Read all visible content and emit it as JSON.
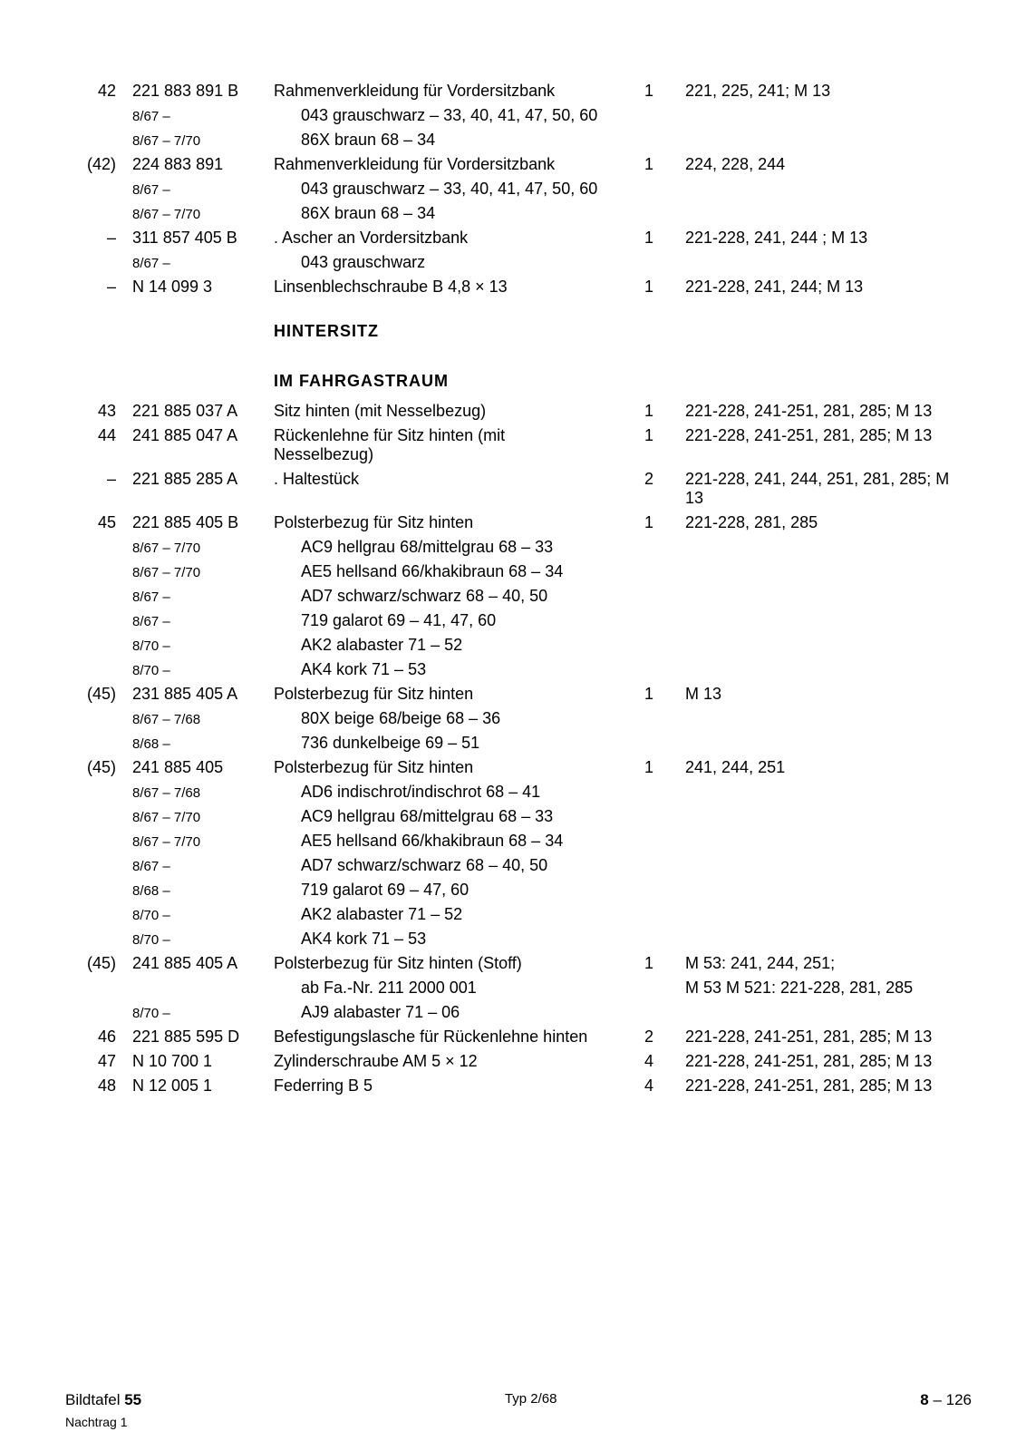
{
  "rows": [
    {
      "pos": "42",
      "partno": "221 883 891 B",
      "desc": "Rahmenverkleidung für Vordersitzbank",
      "qty": "1",
      "models": "221, 225, 241; M 13"
    },
    {
      "pos": "",
      "partno": "8/67 –",
      "desc": "043  grauschwarz – 33, 40,  41, 47, 50, 60",
      "qty": "",
      "models": "",
      "px": "daterange",
      "di": "indent1"
    },
    {
      "pos": "",
      "partno": "8/67 – 7/70",
      "desc": "86X  braun 68 – 34",
      "qty": "",
      "models": "",
      "px": "daterange",
      "di": "indent1"
    },
    {
      "pos": "(42)",
      "partno": "224 883 891",
      "desc": "Rahmenverkleidung für Vordersitzbank",
      "qty": "1",
      "models": "224, 228, 244"
    },
    {
      "pos": "",
      "partno": "8/67 –",
      "desc": "043  grauschwarz – 33, 40, 41, 47, 50, 60",
      "qty": "",
      "models": "",
      "px": "daterange",
      "di": "indent1"
    },
    {
      "pos": "",
      "partno": "8/67 – 7/70",
      "desc": "86X  braun 68 – 34",
      "qty": "",
      "models": "",
      "px": "daterange",
      "di": "indent1"
    },
    {
      "pos": "–",
      "partno": "311 857 405 B",
      "desc": ". Ascher an Vordersitzbank",
      "qty": "1",
      "models": "221-228, 241, 244 ; M 13"
    },
    {
      "pos": "",
      "partno": "8/67 –",
      "desc": "043  grauschwarz",
      "qty": "",
      "models": "",
      "px": "daterange",
      "di": "indent1"
    },
    {
      "pos": "–",
      "partno": "N 14 099 3",
      "desc": "Linsenblechschraube B 4,8 × 13",
      "qty": "1",
      "models": "221-228, 241, 244; M 13"
    },
    {
      "section": "HINTERSITZ"
    },
    {
      "section": "IM FAHRGASTRAUM"
    },
    {
      "pos": "43",
      "partno": "221 885 037 A",
      "desc": "Sitz hinten (mit Nesselbezug)",
      "qty": "1",
      "models": "221-228, 241-251, 281, 285; M 13"
    },
    {
      "pos": "44",
      "partno": "241 885 047 A",
      "desc": "Rückenlehne für Sitz hinten (mit Nesselbezug)",
      "qty": "1",
      "models": "221-228, 241-251, 281, 285; M 13"
    },
    {
      "pos": "–",
      "partno": "221 885 285 A",
      "desc": ". Haltestück",
      "qty": "2",
      "models": "221-228, 241, 244, 251, 281, 285; M 13"
    },
    {
      "pos": "45",
      "partno": "221 885 405 B",
      "desc": "Polsterbezug für Sitz hinten",
      "qty": "1",
      "models": "221-228, 281, 285"
    },
    {
      "pos": "",
      "partno": "8/67 – 7/70",
      "desc": "AC9  hellgrau 68/mittelgrau 68 – 33",
      "qty": "",
      "models": "",
      "px": "daterange",
      "di": "indent1"
    },
    {
      "pos": "",
      "partno": "8/67 – 7/70",
      "desc": "AE5  hellsand 66/khakibraun 68 – 34",
      "qty": "",
      "models": "",
      "px": "daterange",
      "di": "indent1"
    },
    {
      "pos": "",
      "partno": "8/67 –",
      "desc": "AD7  schwarz/schwarz 68 – 40, 50",
      "qty": "",
      "models": "",
      "px": "daterange",
      "di": "indent1"
    },
    {
      "pos": "",
      "partno": "8/67 –",
      "desc": "719  galarot 69 –  41, 47, 60",
      "qty": "",
      "models": "",
      "px": "daterange",
      "di": "indent1"
    },
    {
      "pos": "",
      "partno": "8/70 –",
      "desc": "AK2  alabaster 71 – 52",
      "qty": "",
      "models": "",
      "px": "daterange",
      "di": "indent1"
    },
    {
      "pos": "",
      "partno": "8/70 –",
      "desc": "AK4  kork 71 – 53",
      "qty": "",
      "models": "",
      "px": "daterange",
      "di": "indent1"
    },
    {
      "pos": "(45)",
      "partno": "231 885 405 A",
      "desc": "Polsterbezug für Sitz hinten",
      "qty": "1",
      "models": "M 13"
    },
    {
      "pos": "",
      "partno": "8/67 – 7/68",
      "desc": "80X  beige 68/beige 68 – 36",
      "qty": "",
      "models": "",
      "px": "daterange",
      "di": "indent1"
    },
    {
      "pos": "",
      "partno": "8/68 –",
      "desc": "736  dunkelbeige 69 – 51",
      "qty": "",
      "models": "",
      "px": "daterange",
      "di": "indent1"
    },
    {
      "pos": "(45)",
      "partno": "241 885 405",
      "desc": "Polsterbezug für Sitz hinten",
      "qty": "1",
      "models": "241, 244, 251"
    },
    {
      "pos": "",
      "partno": "8/67 – 7/68",
      "desc": "AD6  indischrot/indischrot 68 – 41",
      "qty": "",
      "models": "",
      "px": "daterange",
      "di": "indent1"
    },
    {
      "pos": "",
      "partno": "8/67 – 7/70",
      "desc": "AC9  hellgrau 68/mittelgrau 68 – 33",
      "qty": "",
      "models": "",
      "px": "daterange",
      "di": "indent1"
    },
    {
      "pos": "",
      "partno": "8/67 – 7/70",
      "desc": "AE5  hellsand 66/khakibraun 68 – 34",
      "qty": "",
      "models": "",
      "px": "daterange",
      "di": "indent1"
    },
    {
      "pos": "",
      "partno": "8/67 –",
      "desc": "AD7  schwarz/schwarz 68 – 40, 50",
      "qty": "",
      "models": "",
      "px": "daterange",
      "di": "indent1"
    },
    {
      "pos": "",
      "partno": "8/68 –",
      "desc": "719  galarot 69 – 47, 60",
      "qty": "",
      "models": "",
      "px": "daterange",
      "di": "indent1"
    },
    {
      "pos": "",
      "partno": "8/70 –",
      "desc": "AK2  alabaster 71 – 52",
      "qty": "",
      "models": "",
      "px": "daterange",
      "di": "indent1"
    },
    {
      "pos": "",
      "partno": "8/70 –",
      "desc": "AK4  kork 71 – 53",
      "qty": "",
      "models": "",
      "px": "daterange",
      "di": "indent1"
    },
    {
      "pos": "(45)",
      "partno": "241 885 405 A",
      "desc": "Polsterbezug für Sitz hinten (Stoff)",
      "qty": "1",
      "models": "M 53: 241, 244, 251;"
    },
    {
      "pos": "",
      "partno": "",
      "desc": "ab Fa.-Nr. 211 2000 001",
      "qty": "",
      "models": "M 53 M 521: 221-228, 281, 285",
      "di": "indent1"
    },
    {
      "pos": "",
      "partno": "8/70 –",
      "desc": "AJ9  alabaster 71 – 06",
      "qty": "",
      "models": "",
      "px": "daterange",
      "di": "indent1"
    },
    {
      "pos": "46",
      "partno": "221 885 595 D",
      "desc": "Befestigungslasche  für Rückenlehne hinten",
      "qty": "2",
      "models": "221-228, 241-251, 281, 285; M 13"
    },
    {
      "pos": "47",
      "partno": "N 10 700 1",
      "desc": "Zylinderschraube AM 5 × 12",
      "qty": "4",
      "models": "221-228, 241-251, 281, 285; M 13"
    },
    {
      "pos": "48",
      "partno": "N 12 005 1",
      "desc": "Federring B 5",
      "qty": "4",
      "models": "221-228, 241-251, 281, 285; M 13"
    }
  ],
  "footer": {
    "left_label": "Bildtafel",
    "left_num": "55",
    "nachtrag": "Nachtrag 1",
    "mid": "Typ 2/68",
    "right_bold": "8",
    "right_rest": " – 126"
  }
}
